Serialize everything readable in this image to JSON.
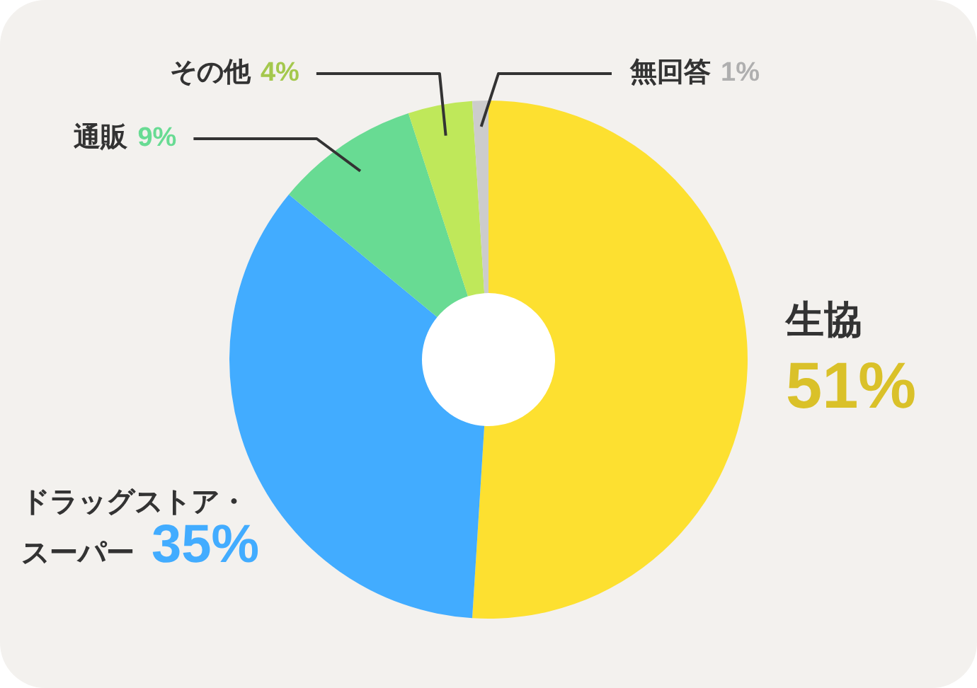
{
  "chart_data": {
    "type": "donut",
    "categories": [
      "生協",
      "ドラッグストア・スーパー",
      "通販",
      "その他",
      "無回答"
    ],
    "values": [
      51,
      35,
      9,
      4,
      1
    ],
    "colors": [
      "#fde030",
      "#42acff",
      "#68db93",
      "#bfe85a",
      "#cccccc"
    ],
    "value_labels": [
      "51%",
      "35%",
      "9%",
      "4%",
      "1%"
    ]
  }
}
